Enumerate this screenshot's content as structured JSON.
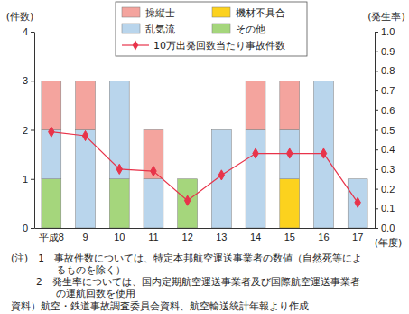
{
  "chart_data": {
    "type": "bar",
    "stacked": true,
    "y_label": "(件数)",
    "y2_label": "(発生率)",
    "x_label": "(年度)",
    "categories": [
      "平成8",
      "9",
      "10",
      "11",
      "12",
      "13",
      "14",
      "15",
      "16",
      "17"
    ],
    "series": [
      {
        "name": "操縦士",
        "type": "bar",
        "color": "#f4a49e",
        "values": [
          1,
          1,
          0,
          1,
          0,
          0,
          1,
          1,
          0,
          0
        ]
      },
      {
        "name": "乱気流",
        "type": "bar",
        "color": "#b9d5ec",
        "values": [
          1,
          2,
          2,
          1,
          0,
          2,
          2,
          1,
          3,
          1
        ]
      },
      {
        "name": "機材不具合",
        "type": "bar",
        "color": "#fcd21e",
        "values": [
          0,
          0,
          0,
          0,
          0,
          0,
          0,
          1,
          0,
          0
        ]
      },
      {
        "name": "その他",
        "type": "bar",
        "color": "#a5d67c",
        "values": [
          1,
          0,
          1,
          0,
          1,
          0,
          0,
          0,
          0,
          0
        ]
      },
      {
        "name": "10万出発回数当たり事故件数",
        "type": "line",
        "axis": "y2",
        "color": "#e8334a",
        "marker": "diamond",
        "values": [
          0.49,
          0.47,
          0.3,
          0.29,
          0.14,
          0.27,
          0.38,
          0.38,
          0.38,
          0.13
        ]
      }
    ],
    "ylim": [
      0,
      4
    ],
    "yticks": [
      0,
      1,
      2,
      3,
      4
    ],
    "y2lim": [
      0,
      1
    ],
    "y2ticks": [
      {
        "value": 0,
        "label": "0.0"
      },
      0.1,
      0.2,
      0.3,
      0.4,
      0.5,
      0.6,
      0.7,
      0.8,
      0.9,
      {
        "value": 1,
        "label": "1.0"
      }
    ],
    "legend": "top",
    "annotations": [
      "(注)　1　事故件数については、特定本邦航空運送事業者の数値（自然死等によ",
      "るものを除く）",
      "2　発生率については、国内定期航空運送事業者及び国際航空運送事業者",
      "の運航回数を使用",
      "資料）航空・鉄道事故調査委員会資料、航空輸送統計年報より作成"
    ]
  }
}
